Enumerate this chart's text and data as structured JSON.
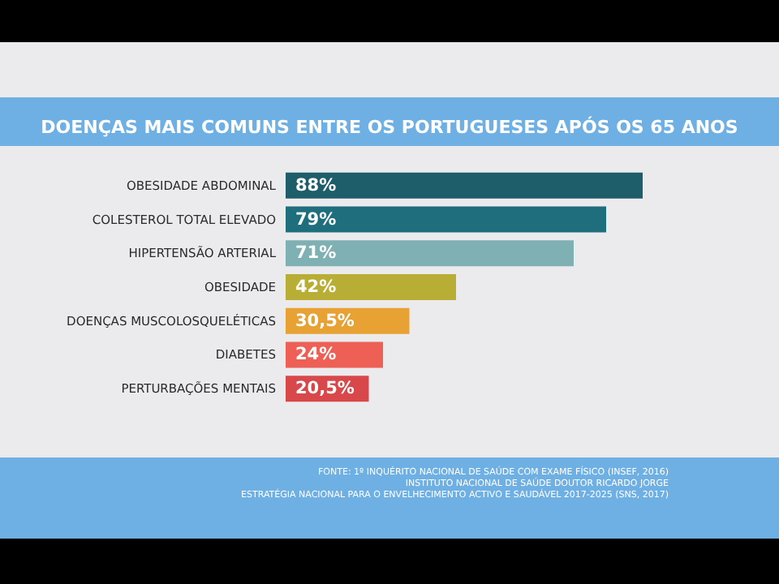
{
  "chart_data": {
    "type": "bar",
    "orientation": "horizontal",
    "title": "DOENÇAS MAIS COMUNS ENTRE OS PORTUGUESES APÓS OS 65 ANOS",
    "categories": [
      "OBESIDADE ABDOMINAL",
      "COLESTEROL TOTAL ELEVADO",
      "HIPERTENSÃO ARTERIAL",
      "OBESIDADE",
      "DOENÇAS MUSCOLOSQUELÉTICAS",
      "DIABETES",
      "PERTURBAÇÕES MENTAIS"
    ],
    "values": [
      88,
      79,
      71,
      42,
      30.5,
      24,
      20.5
    ],
    "value_labels": [
      "88%",
      "79%",
      "71%",
      "42%",
      "30,5%",
      "24%",
      "20,5%"
    ],
    "colors": [
      "#1d5e6a",
      "#1f6e7e",
      "#7fb1b4",
      "#b8ae35",
      "#e8a133",
      "#ee5f56",
      "#d8484b"
    ],
    "annotations": [
      "FONTE: 1º INQUÉRITO NACIONAL DE SAÚDE COM EXAME FÍSICO (INSEF, 2016)",
      "INSTITUTO NACIONAL DE SAÚDE DOUTOR RICARDO JORGE",
      "ESTRATÉGIA NACIONAL PARA O ENVELHECIMENTO ACTIVO E SAUDÁVEL 2017-2025 (SNS, 2017)"
    ],
    "grid": false
  }
}
